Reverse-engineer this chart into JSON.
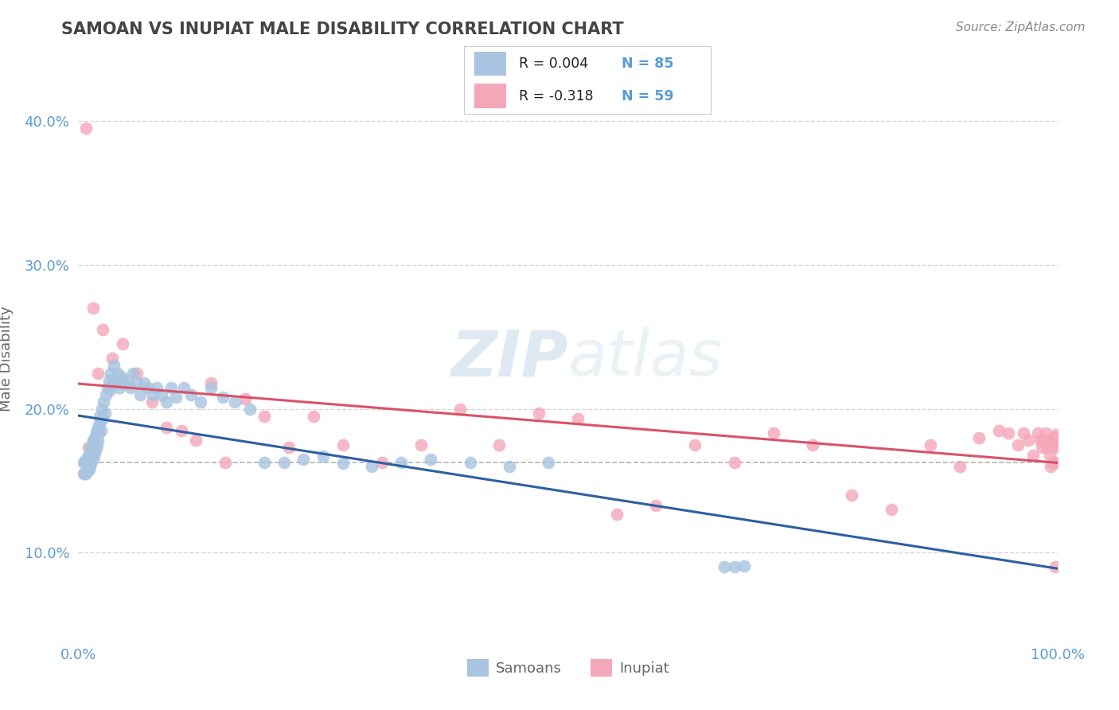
{
  "title": "SAMOAN VS INUPIAT MALE DISABILITY CORRELATION CHART",
  "source": "Source: ZipAtlas.com",
  "ylabel": "Male Disability",
  "xlim": [
    0.0,
    1.0
  ],
  "ylim": [
    0.04,
    0.43
  ],
  "yticks": [
    0.1,
    0.2,
    0.3,
    0.4
  ],
  "ytick_labels": [
    "10.0%",
    "20.0%",
    "30.0%",
    "40.0%"
  ],
  "xticks": [
    0.0,
    1.0
  ],
  "xtick_labels": [
    "0.0%",
    "100.0%"
  ],
  "legend_labels": [
    "Samoans",
    "Inupiat"
  ],
  "samoan_color": "#a8c4e0",
  "inupiat_color": "#f4a7b9",
  "samoan_line_color": "#2e5fa3",
  "inupiat_line_color": "#d9536a",
  "R_samoan": 0.004,
  "N_samoan": 85,
  "R_inupiat": -0.318,
  "N_inupiat": 59,
  "samoan_x": [
    0.005,
    0.005,
    0.006,
    0.007,
    0.008,
    0.008,
    0.009,
    0.009,
    0.01,
    0.01,
    0.011,
    0.011,
    0.012,
    0.012,
    0.013,
    0.013,
    0.014,
    0.014,
    0.015,
    0.015,
    0.015,
    0.016,
    0.016,
    0.017,
    0.017,
    0.018,
    0.018,
    0.019,
    0.019,
    0.02,
    0.02,
    0.021,
    0.022,
    0.022,
    0.023,
    0.024,
    0.025,
    0.026,
    0.027,
    0.028,
    0.03,
    0.031,
    0.032,
    0.033,
    0.035,
    0.036,
    0.038,
    0.04,
    0.042,
    0.044,
    0.046,
    0.05,
    0.053,
    0.056,
    0.06,
    0.063,
    0.067,
    0.071,
    0.076,
    0.08,
    0.085,
    0.09,
    0.095,
    0.1,
    0.108,
    0.115,
    0.125,
    0.135,
    0.148,
    0.16,
    0.175,
    0.19,
    0.21,
    0.23,
    0.25,
    0.27,
    0.3,
    0.33,
    0.36,
    0.4,
    0.44,
    0.48,
    0.66,
    0.67,
    0.68
  ],
  "samoan_y": [
    0.155,
    0.163,
    0.155,
    0.162,
    0.155,
    0.165,
    0.16,
    0.157,
    0.163,
    0.168,
    0.158,
    0.165,
    0.16,
    0.17,
    0.163,
    0.173,
    0.167,
    0.175,
    0.165,
    0.173,
    0.178,
    0.168,
    0.177,
    0.17,
    0.18,
    0.172,
    0.183,
    0.175,
    0.185,
    0.178,
    0.187,
    0.183,
    0.19,
    0.195,
    0.185,
    0.2,
    0.193,
    0.205,
    0.197,
    0.21,
    0.215,
    0.22,
    0.213,
    0.225,
    0.22,
    0.23,
    0.218,
    0.225,
    0.215,
    0.222,
    0.218,
    0.22,
    0.215,
    0.225,
    0.218,
    0.21,
    0.218,
    0.215,
    0.21,
    0.215,
    0.21,
    0.205,
    0.215,
    0.208,
    0.215,
    0.21,
    0.205,
    0.215,
    0.208,
    0.205,
    0.2,
    0.163,
    0.163,
    0.165,
    0.167,
    0.162,
    0.16,
    0.163,
    0.165,
    0.163,
    0.16,
    0.163,
    0.09,
    0.09,
    0.091
  ],
  "inupiat_x": [
    0.008,
    0.01,
    0.015,
    0.02,
    0.025,
    0.035,
    0.045,
    0.06,
    0.075,
    0.09,
    0.105,
    0.12,
    0.135,
    0.15,
    0.17,
    0.19,
    0.215,
    0.24,
    0.27,
    0.31,
    0.35,
    0.39,
    0.43,
    0.47,
    0.51,
    0.55,
    0.59,
    0.63,
    0.67,
    0.71,
    0.75,
    0.79,
    0.83,
    0.87,
    0.9,
    0.92,
    0.94,
    0.95,
    0.96,
    0.965,
    0.97,
    0.975,
    0.98,
    0.982,
    0.984,
    0.986,
    0.988,
    0.99,
    0.991,
    0.992,
    0.993,
    0.994,
    0.995,
    0.996,
    0.997,
    0.998,
    0.998,
    0.999,
    0.999
  ],
  "inupiat_y": [
    0.395,
    0.173,
    0.27,
    0.225,
    0.255,
    0.235,
    0.245,
    0.225,
    0.205,
    0.187,
    0.185,
    0.178,
    0.218,
    0.163,
    0.207,
    0.195,
    0.173,
    0.195,
    0.175,
    0.163,
    0.175,
    0.2,
    0.175,
    0.197,
    0.193,
    0.127,
    0.133,
    0.175,
    0.163,
    0.183,
    0.175,
    0.14,
    0.13,
    0.175,
    0.16,
    0.18,
    0.185,
    0.183,
    0.175,
    0.183,
    0.178,
    0.168,
    0.183,
    0.178,
    0.173,
    0.178,
    0.183,
    0.173,
    0.178,
    0.168,
    0.16,
    0.175,
    0.163,
    0.18,
    0.175,
    0.163,
    0.09,
    0.173,
    0.182
  ],
  "ref_line_y": 0.163,
  "background_color": "#ffffff",
  "grid_color": "#cccccc",
  "title_color": "#444444",
  "axis_label_color": "#666666",
  "tick_label_color": "#5b9bd5",
  "source_color": "#888888",
  "watermark_color": "#dce8f0"
}
